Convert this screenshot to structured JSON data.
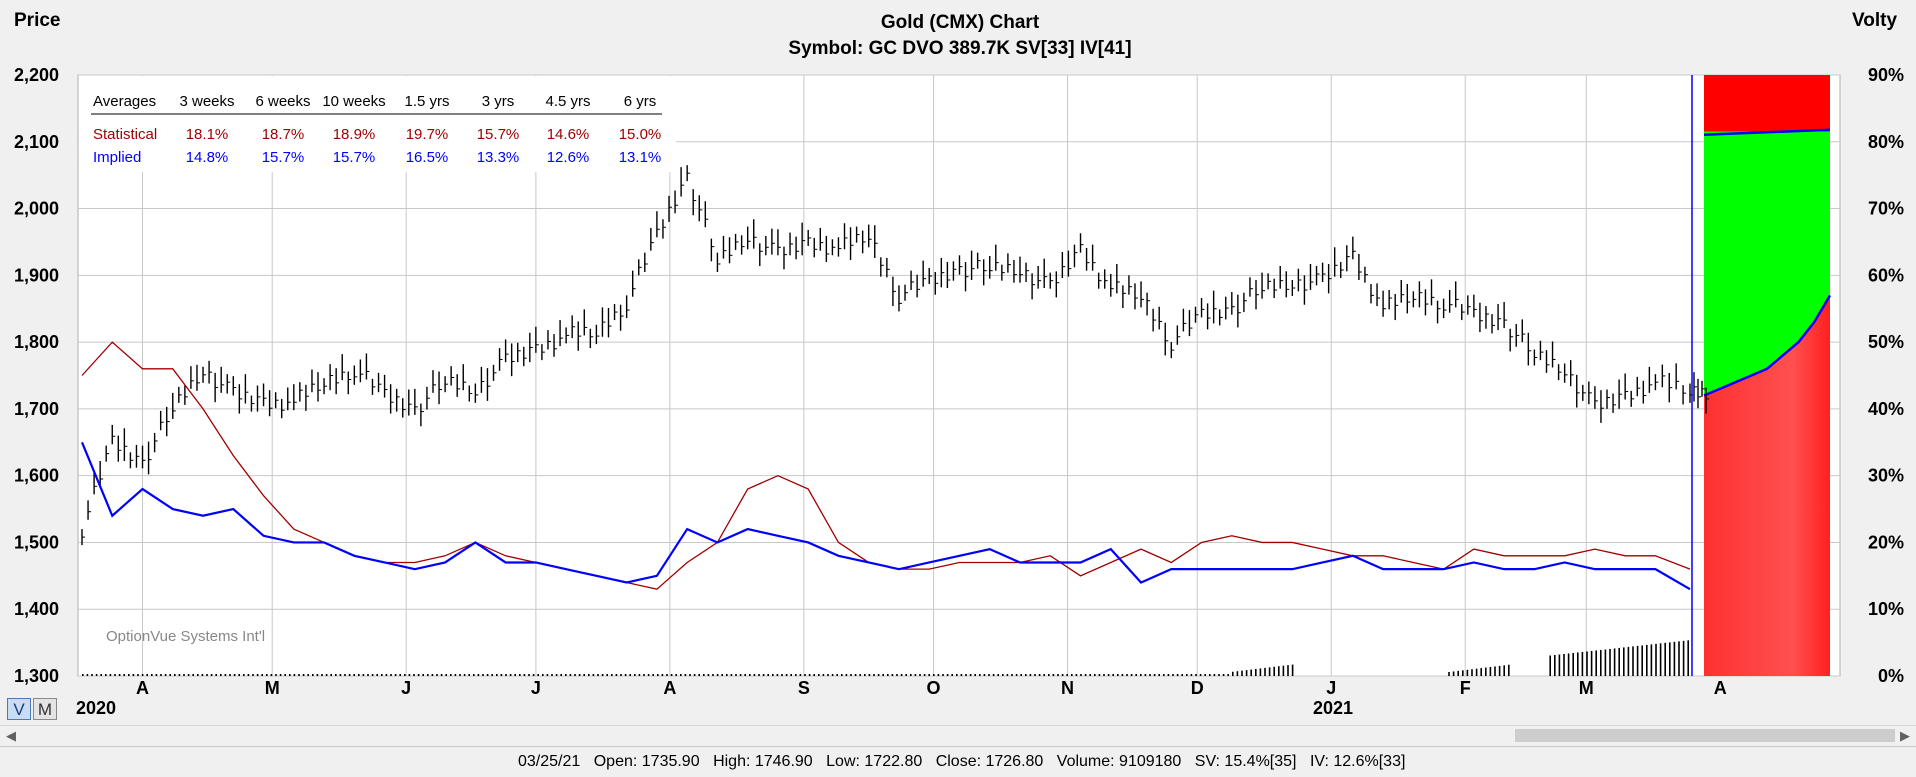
{
  "chart_data": {
    "type": "line",
    "title": "Gold (CMX) Chart",
    "subtitle": "Symbol: GC  DVO 389.7K  SV[33]  IV[41]",
    "ylabel_left": "Price",
    "ylabel_right": "Volty",
    "ylim_left": [
      1300,
      2200
    ],
    "ylim_right": [
      0,
      90
    ],
    "yticks_left": [
      "1,300",
      "1,400",
      "1,500",
      "1,600",
      "1,700",
      "1,800",
      "1,900",
      "2,000",
      "2,100",
      "2,200"
    ],
    "yticks_right": [
      "0%",
      "10%",
      "20%",
      "30%",
      "40%",
      "50%",
      "60%",
      "70%",
      "80%",
      "90%"
    ],
    "x_months": [
      "A",
      "M",
      "J",
      "J",
      "A",
      "S",
      "O",
      "N",
      "D",
      "J",
      "F",
      "M",
      "A"
    ],
    "x_years": [
      "2020",
      "2021"
    ],
    "watermark": "OptionVue Systems Int'l",
    "price_series": {
      "name": "Gold price",
      "color": "#000000",
      "x": [
        "2020-03-18",
        "2020-03-25",
        "2020-04-01",
        "2020-04-08",
        "2020-04-15",
        "2020-04-22",
        "2020-04-29",
        "2020-05-06",
        "2020-05-13",
        "2020-05-20",
        "2020-05-27",
        "2020-06-03",
        "2020-06-10",
        "2020-06-17",
        "2020-06-24",
        "2020-07-01",
        "2020-07-08",
        "2020-07-15",
        "2020-07-22",
        "2020-07-29",
        "2020-08-05",
        "2020-08-12",
        "2020-08-19",
        "2020-08-26",
        "2020-09-02",
        "2020-09-09",
        "2020-09-16",
        "2020-09-23",
        "2020-09-30",
        "2020-10-07",
        "2020-10-14",
        "2020-10-21",
        "2020-10-28",
        "2020-11-04",
        "2020-11-11",
        "2020-11-18",
        "2020-11-25",
        "2020-12-02",
        "2020-12-09",
        "2020-12-16",
        "2020-12-23",
        "2020-12-30",
        "2021-01-06",
        "2021-01-13",
        "2021-01-20",
        "2021-01-27",
        "2021-02-03",
        "2021-02-10",
        "2021-02-17",
        "2021-02-24",
        "2021-03-03",
        "2021-03-10",
        "2021-03-17",
        "2021-03-25"
      ],
      "values": [
        1520,
        1650,
        1620,
        1700,
        1760,
        1720,
        1710,
        1710,
        1740,
        1760,
        1720,
        1700,
        1740,
        1730,
        1770,
        1790,
        1810,
        1815,
        1860,
        1960,
        2050,
        1920,
        1960,
        1930,
        1950,
        1940,
        1960,
        1870,
        1890,
        1910,
        1910,
        1910,
        1880,
        1940,
        1880,
        1870,
        1800,
        1840,
        1850,
        1880,
        1890,
        1890,
        1930,
        1850,
        1870,
        1860,
        1840,
        1830,
        1780,
        1760,
        1700,
        1720,
        1740,
        1727
      ]
    },
    "statistical_series": {
      "name": "Statistical",
      "color": "#a00000",
      "x": [
        "2020-03-18",
        "2020-03-25",
        "2020-04-01",
        "2020-04-08",
        "2020-04-15",
        "2020-04-22",
        "2020-04-29",
        "2020-05-06",
        "2020-05-13",
        "2020-05-20",
        "2020-05-27",
        "2020-06-03",
        "2020-06-10",
        "2020-06-17",
        "2020-06-24",
        "2020-07-01",
        "2020-07-08",
        "2020-07-15",
        "2020-07-22",
        "2020-07-29",
        "2020-08-05",
        "2020-08-12",
        "2020-08-19",
        "2020-08-26",
        "2020-09-02",
        "2020-09-09",
        "2020-09-16",
        "2020-09-23",
        "2020-09-30",
        "2020-10-07",
        "2020-10-14",
        "2020-10-21",
        "2020-10-28",
        "2020-11-04",
        "2020-11-11",
        "2020-11-18",
        "2020-11-25",
        "2020-12-02",
        "2020-12-09",
        "2020-12-16",
        "2020-12-23",
        "2020-12-30",
        "2021-01-06",
        "2021-01-13",
        "2021-01-20",
        "2021-01-27",
        "2021-02-03",
        "2021-02-10",
        "2021-02-17",
        "2021-02-24",
        "2021-03-03",
        "2021-03-10",
        "2021-03-17",
        "2021-03-25"
      ],
      "values": [
        45,
        50,
        46,
        46,
        40,
        33,
        27,
        22,
        20,
        18,
        17,
        17,
        18,
        20,
        18,
        17,
        16,
        15,
        14,
        13,
        17,
        20,
        28,
        30,
        28,
        20,
        17,
        16,
        16,
        17,
        17,
        17,
        18,
        15,
        17,
        19,
        17,
        20,
        21,
        20,
        20,
        19,
        18,
        18,
        17,
        16,
        19,
        18,
        18,
        18,
        19,
        18,
        18,
        16
      ]
    },
    "implied_series": {
      "name": "Implied",
      "color": "#0000ff",
      "x": [
        "2020-03-18",
        "2020-03-25",
        "2020-04-01",
        "2020-04-08",
        "2020-04-15",
        "2020-04-22",
        "2020-04-29",
        "2020-05-06",
        "2020-05-13",
        "2020-05-20",
        "2020-05-27",
        "2020-06-03",
        "2020-06-10",
        "2020-06-17",
        "2020-06-24",
        "2020-07-01",
        "2020-07-08",
        "2020-07-15",
        "2020-07-22",
        "2020-07-29",
        "2020-08-05",
        "2020-08-12",
        "2020-08-19",
        "2020-08-26",
        "2020-09-02",
        "2020-09-09",
        "2020-09-16",
        "2020-09-23",
        "2020-09-30",
        "2020-10-07",
        "2020-10-14",
        "2020-10-21",
        "2020-10-28",
        "2020-11-04",
        "2020-11-11",
        "2020-11-18",
        "2020-11-25",
        "2020-12-02",
        "2020-12-09",
        "2020-12-16",
        "2020-12-23",
        "2020-12-30",
        "2021-01-06",
        "2021-01-13",
        "2021-01-20",
        "2021-01-27",
        "2021-02-03",
        "2021-02-10",
        "2021-02-17",
        "2021-02-24",
        "2021-03-03",
        "2021-03-10",
        "2021-03-17",
        "2021-03-25"
      ],
      "values": [
        35,
        24,
        28,
        25,
        24,
        25,
        21,
        20,
        20,
        18,
        17,
        16,
        17,
        20,
        17,
        17,
        16,
        15,
        14,
        15,
        22,
        20,
        22,
        21,
        20,
        18,
        17,
        16,
        17,
        18,
        19,
        17,
        17,
        17,
        19,
        14,
        16,
        16,
        16,
        16,
        16,
        17,
        18,
        16,
        16,
        16,
        17,
        16,
        16,
        17,
        16,
        16,
        16,
        13
      ]
    },
    "volume_bars_note": "volume histogram along bottom",
    "forecast_zone": {
      "implied_forecast": [
        42,
        43,
        44,
        45,
        46,
        48,
        50,
        53,
        57
      ],
      "upper_band_percent": 81.5,
      "band_colors": {
        "upper": "#ff0000",
        "middle": "#00ff00",
        "lower": "#ff4040"
      }
    },
    "averages_table": {
      "header": [
        "Averages",
        "3 weeks",
        "6 weeks",
        "10 weeks",
        "1.5 yrs",
        "3 yrs",
        "4.5 yrs",
        "6 yrs"
      ],
      "rows": [
        {
          "label": "Statistical",
          "color": "#a00000",
          "values": [
            "18.1%",
            "18.7%",
            "18.9%",
            "19.7%",
            "15.7%",
            "14.6%",
            "15.0%"
          ]
        },
        {
          "label": "Implied",
          "color": "#0000ff",
          "values": [
            "14.8%",
            "15.7%",
            "15.7%",
            "16.5%",
            "13.3%",
            "12.6%",
            "13.1%"
          ]
        }
      ]
    }
  },
  "view_buttons": {
    "v": "V",
    "m": "M"
  },
  "status_bar": {
    "date": "03/25/21",
    "open": "Open: 1735.90",
    "high": "High: 1746.90",
    "low": "Low: 1722.80",
    "close": "Close: 1726.80",
    "volume": "Volume: 9109180",
    "sv": "SV: 15.4%[35]",
    "iv": "IV: 12.6%[33]"
  }
}
